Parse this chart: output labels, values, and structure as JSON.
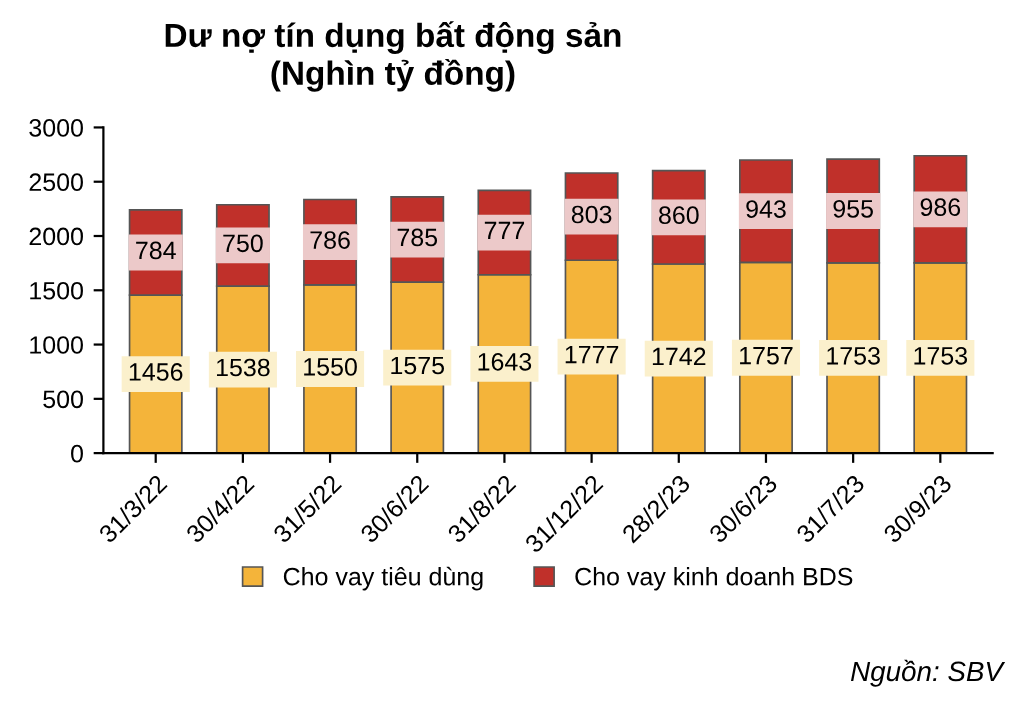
{
  "chart_data": {
    "type": "bar",
    "stacked": true,
    "title": "Dư nợ tín dụng bất động sản\n(Nghìn tỷ đồng)",
    "categories": [
      "31/3/22",
      "30/4/22",
      "31/5/22",
      "30/6/22",
      "31/8/22",
      "31/12/22",
      "28/2/23",
      "30/6/23",
      "31/7/23",
      "30/9/23"
    ],
    "series": [
      {
        "name": "Cho vay tiêu dùng",
        "color": "#f4b43a",
        "values": [
          1456,
          1538,
          1550,
          1575,
          1643,
          1777,
          1742,
          1757,
          1753,
          1753
        ]
      },
      {
        "name": "Cho vay kinh doanh BDS",
        "color": "#c0302a",
        "values": [
          784,
          750,
          786,
          785,
          777,
          803,
          860,
          943,
          955,
          986
        ]
      }
    ],
    "ylim": [
      0,
      3000
    ],
    "yticks": [
      0,
      500,
      1000,
      1500,
      2000,
      2500,
      3000
    ],
    "grid": false,
    "legend": "bottom",
    "data_labels": true,
    "annotations": [
      "Nguồn: SBV"
    ]
  }
}
